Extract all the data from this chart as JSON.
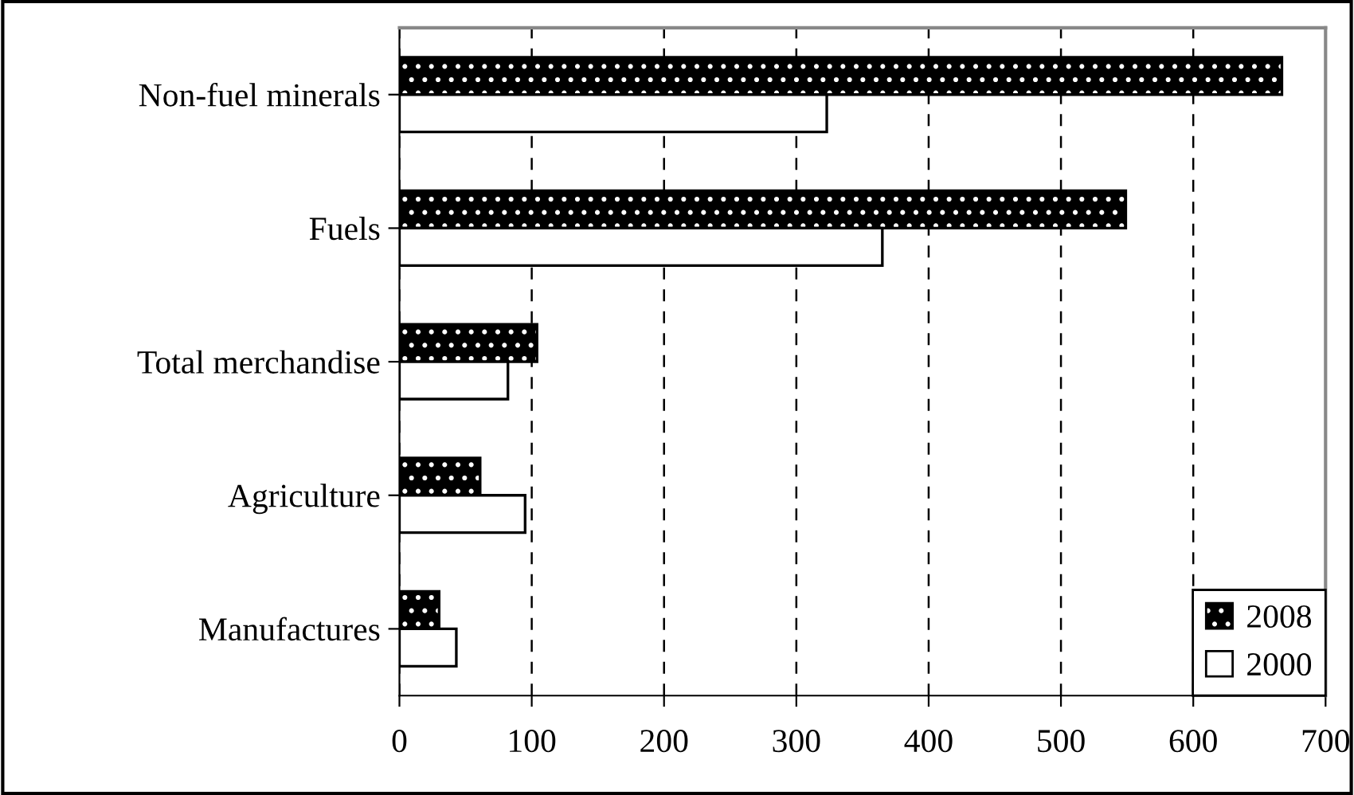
{
  "chart_data": {
    "type": "bar",
    "orientation": "horizontal",
    "categories": [
      "Non-fuel minerals",
      "Fuels",
      "Total merchandise",
      "Agriculture",
      "Manufactures"
    ],
    "series": [
      {
        "name": "2008",
        "color": "#000000",
        "values": [
          667,
          549,
          104,
          61,
          30
        ]
      },
      {
        "name": "2000",
        "color": "#ffffff",
        "values": [
          323,
          365,
          82,
          95,
          43
        ]
      }
    ],
    "xlim": [
      0,
      700
    ],
    "xticks": [
      0,
      100,
      200,
      300,
      400,
      500,
      600,
      700
    ],
    "grid": "x",
    "legend": "bottom right"
  }
}
